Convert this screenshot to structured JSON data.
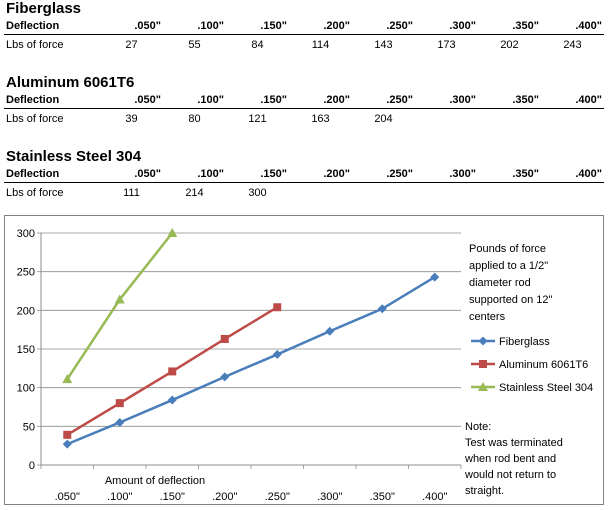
{
  "tables": [
    {
      "title": "Fiberglass",
      "header_label": "Deflection",
      "row_label": "Lbs of force",
      "columns": [
        ".050\"",
        ".100\"",
        ".150\"",
        ".200\"",
        ".250\"",
        ".300\"",
        ".350\"",
        ".400\""
      ],
      "values": [
        "27",
        "55",
        "84",
        "114",
        "143",
        "173",
        "202",
        "243"
      ]
    },
    {
      "title": "Aluminum 6061T6",
      "header_label": "Deflection",
      "row_label": "Lbs of force",
      "columns": [
        ".050\"",
        ".100\"",
        ".150\"",
        ".200\"",
        ".250\"",
        ".300\"",
        ".350\"",
        ".400\""
      ],
      "values": [
        "39",
        "80",
        "121",
        "163",
        "204",
        "",
        "",
        ""
      ]
    },
    {
      "title": "Stainless Steel 304",
      "header_label": "Deflection",
      "row_label": "Lbs of force",
      "columns": [
        ".050\"",
        ".100\"",
        ".150\"",
        ".200\"",
        ".250\"",
        ".300\"",
        ".350\"",
        ".400\""
      ],
      "values": [
        "111",
        "214",
        "300",
        "",
        "",
        "",
        "",
        ""
      ]
    }
  ],
  "chart_data": {
    "type": "line",
    "title": "",
    "xlabel": "Amount of deflection",
    "ylabel": "",
    "categories": [
      ".050\"",
      ".100\"",
      ".150\"",
      ".200\"",
      ".250\"",
      ".300\"",
      ".350\"",
      ".400\""
    ],
    "ylim": [
      0,
      300
    ],
    "yticks": [
      0,
      50,
      100,
      150,
      200,
      250,
      300
    ],
    "grid": true,
    "legend_position": "right",
    "series": [
      {
        "name": "Fiberglass",
        "color": "#4a7ebb",
        "marker": "diamond",
        "values": [
          27,
          55,
          84,
          114,
          143,
          173,
          202,
          243
        ]
      },
      {
        "name": "Aluminum 6061T6",
        "color": "#be4b48",
        "marker": "square",
        "values": [
          39,
          80,
          121,
          163,
          204,
          null,
          null,
          null
        ]
      },
      {
        "name": "Stainless Steel 304",
        "color": "#98b954",
        "marker": "triangle",
        "values": [
          111,
          214,
          300,
          null,
          null,
          null,
          null,
          null
        ]
      }
    ],
    "annotation_top": [
      "Pounds of force",
      "applied to a 1/2\"",
      "diameter rod",
      "supported on 12\"",
      "centers"
    ],
    "annotation_note": [
      "Note:",
      "Test was terminated",
      "when rod bent and",
      "would not return to",
      "straight."
    ]
  }
}
